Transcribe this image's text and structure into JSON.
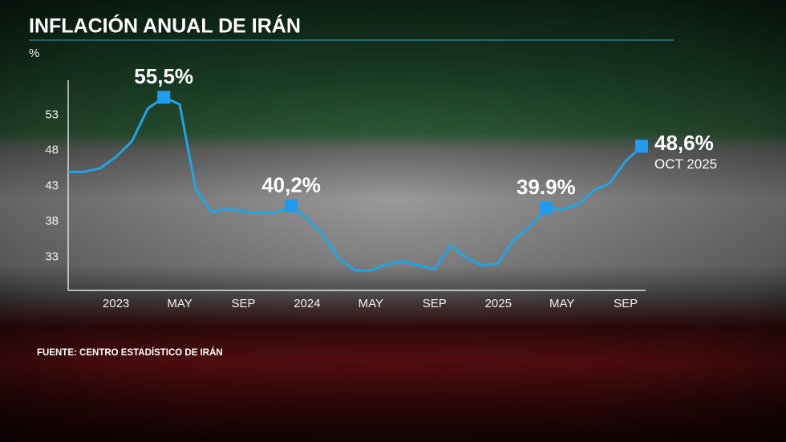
{
  "chart_data": {
    "type": "line",
    "title": "INFLACIÓN ANUAL DE IRÁN",
    "y_label": "%",
    "source": "FUENTE: CENTRO ESTADÍSTICO DE IRÁN",
    "end_note": "OCT 2025",
    "categories": [
      null,
      null,
      null,
      "2023",
      null,
      null,
      null,
      "MAY",
      null,
      null,
      null,
      "SEP",
      null,
      null,
      null,
      "2024",
      null,
      null,
      null,
      "MAY",
      null,
      null,
      null,
      "SEP",
      null,
      null,
      null,
      "2025",
      null,
      null,
      null,
      "MAY",
      null,
      null,
      null,
      "SEP",
      null
    ],
    "values": [
      45.0,
      45.0,
      45.5,
      47.1,
      49.3,
      53.9,
      55.5,
      54.5,
      42.6,
      39.3,
      39.8,
      39.4,
      39.2,
      39.2,
      40.2,
      38.4,
      36.1,
      32.8,
      31.1,
      31.1,
      32.0,
      32.4,
      31.8,
      31.3,
      34.6,
      32.9,
      31.8,
      32.1,
      35.5,
      37.3,
      39.9,
      39.7,
      40.4,
      42.4,
      43.4,
      46.5,
      48.6
    ],
    "value_labels": [
      null,
      null,
      null,
      null,
      null,
      null,
      "55,5%",
      null,
      null,
      null,
      null,
      null,
      null,
      null,
      "40,2%",
      null,
      null,
      null,
      null,
      null,
      null,
      null,
      null,
      null,
      null,
      null,
      null,
      null,
      null,
      null,
      "39.9%",
      null,
      null,
      null,
      null,
      null,
      "48,6%"
    ],
    "color": "#1ea6e6",
    "marker_color": "#1e9cf0",
    "ylim": [
      28.3,
      57.9
    ],
    "yticks": [
      33,
      38,
      43,
      48,
      53
    ],
    "grid": false
  }
}
